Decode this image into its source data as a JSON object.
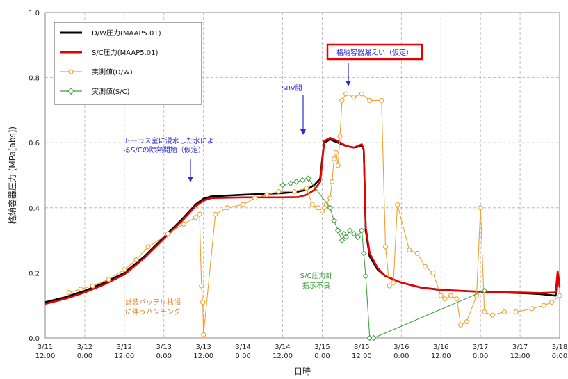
{
  "chart_data": {
    "type": "line",
    "xlabel": "日時",
    "ylabel": "格納容器圧力 (MPa[abs])",
    "ylim": [
      0,
      1.0
    ],
    "yticks": [
      "0.0",
      "0.2",
      "0.4",
      "0.6",
      "0.8",
      "1.0"
    ],
    "xlim": [
      0,
      13
    ],
    "xticks": [
      {
        "date": "3/11",
        "time": "12:00"
      },
      {
        "date": "3/12",
        "time": "0:00"
      },
      {
        "date": "3/12",
        "time": "12:00"
      },
      {
        "date": "3/13",
        "time": "0:00"
      },
      {
        "date": "3/13",
        "time": "12:00"
      },
      {
        "date": "3/14",
        "time": "0:00"
      },
      {
        "date": "3/14",
        "time": "12:00"
      },
      {
        "date": "3/15",
        "time": "0:00"
      },
      {
        "date": "3/15",
        "time": "12:00"
      },
      {
        "date": "3/16",
        "time": "0:00"
      },
      {
        "date": "3/16",
        "time": "12:00"
      },
      {
        "date": "3/17",
        "time": "0:00"
      },
      {
        "date": "3/17",
        "time": "12:00"
      },
      {
        "date": "3/18",
        "time": "0:00"
      }
    ],
    "grid": true,
    "legend_position": "top-left",
    "series": [
      {
        "name": "D/W圧力(MAAP5.01)",
        "color": "#000000",
        "marker": "none",
        "points": [
          [
            0,
            0.11
          ],
          [
            0.5,
            0.125
          ],
          [
            1,
            0.145
          ],
          [
            1.5,
            0.17
          ],
          [
            2,
            0.2
          ],
          [
            2.5,
            0.25
          ],
          [
            3,
            0.31
          ],
          [
            3.5,
            0.37
          ],
          [
            3.8,
            0.41
          ],
          [
            4,
            0.428
          ],
          [
            4.2,
            0.435
          ],
          [
            5,
            0.44
          ],
          [
            6,
            0.445
          ],
          [
            6.4,
            0.45
          ],
          [
            6.6,
            0.455
          ],
          [
            6.8,
            0.47
          ],
          [
            6.95,
            0.49
          ],
          [
            7.0,
            0.55
          ],
          [
            7.05,
            0.6
          ],
          [
            7.2,
            0.61
          ],
          [
            7.4,
            0.6
          ],
          [
            7.6,
            0.59
          ],
          [
            7.8,
            0.585
          ],
          [
            8.0,
            0.59
          ],
          [
            8.05,
            0.58
          ],
          [
            8.1,
            0.33
          ],
          [
            8.2,
            0.25
          ],
          [
            8.4,
            0.21
          ],
          [
            8.6,
            0.19
          ],
          [
            9,
            0.17
          ],
          [
            9.5,
            0.155
          ],
          [
            10,
            0.148
          ],
          [
            11,
            0.142
          ],
          [
            12,
            0.138
          ],
          [
            12.5,
            0.135
          ],
          [
            12.9,
            0.13
          ],
          [
            12.95,
            0.2
          ],
          [
            13,
            0.16
          ]
        ]
      },
      {
        "name": "S/C圧力(MAAP5.01)",
        "color": "#e60000",
        "marker": "none",
        "points": [
          [
            0,
            0.105
          ],
          [
            0.5,
            0.12
          ],
          [
            1,
            0.14
          ],
          [
            1.5,
            0.165
          ],
          [
            2,
            0.195
          ],
          [
            2.5,
            0.245
          ],
          [
            3,
            0.305
          ],
          [
            3.5,
            0.365
          ],
          [
            3.8,
            0.405
          ],
          [
            4,
            0.422
          ],
          [
            4.2,
            0.43
          ],
          [
            5,
            0.432
          ],
          [
            6,
            0.432
          ],
          [
            6.4,
            0.433
          ],
          [
            6.6,
            0.44
          ],
          [
            6.8,
            0.455
          ],
          [
            6.95,
            0.48
          ],
          [
            7.0,
            0.54
          ],
          [
            7.05,
            0.605
          ],
          [
            7.2,
            0.615
          ],
          [
            7.4,
            0.605
          ],
          [
            7.6,
            0.59
          ],
          [
            7.8,
            0.585
          ],
          [
            8.0,
            0.595
          ],
          [
            8.05,
            0.58
          ],
          [
            8.1,
            0.34
          ],
          [
            8.2,
            0.26
          ],
          [
            8.4,
            0.215
          ],
          [
            8.6,
            0.19
          ],
          [
            9,
            0.17
          ],
          [
            9.5,
            0.155
          ],
          [
            10,
            0.147
          ],
          [
            11,
            0.142
          ],
          [
            12,
            0.14
          ],
          [
            12.5,
            0.138
          ],
          [
            12.9,
            0.14
          ],
          [
            12.95,
            0.205
          ],
          [
            13,
            0.155
          ]
        ]
      },
      {
        "name": "実測値(D/W)",
        "color": "#f0a030",
        "marker": "circle",
        "points": [
          [
            0.6,
            0.14
          ],
          [
            0.9,
            0.15
          ],
          [
            1.2,
            0.16
          ],
          [
            1.6,
            0.18
          ],
          [
            2.0,
            0.21
          ],
          [
            2.3,
            0.24
          ],
          [
            2.6,
            0.28
          ],
          [
            3.1,
            0.32
          ],
          [
            3.5,
            0.35
          ],
          [
            3.8,
            0.37
          ],
          [
            3.9,
            0.38
          ],
          [
            3.95,
            0.16
          ],
          [
            3.98,
            0.11
          ],
          [
            4.0,
            0.01
          ],
          [
            4.3,
            0.38
          ],
          [
            4.6,
            0.4
          ],
          [
            5.0,
            0.41
          ],
          [
            5.3,
            0.43
          ],
          [
            5.6,
            0.44
          ],
          [
            5.9,
            0.45
          ],
          [
            6.3,
            0.45
          ],
          [
            6.6,
            0.46
          ],
          [
            6.75,
            0.41
          ],
          [
            6.9,
            0.4
          ],
          [
            7.0,
            0.39
          ],
          [
            7.05,
            0.4
          ],
          [
            7.1,
            0.41
          ],
          [
            7.2,
            0.43
          ],
          [
            7.25,
            0.48
          ],
          [
            7.3,
            0.55
          ],
          [
            7.35,
            0.57
          ],
          [
            7.4,
            0.53
          ],
          [
            7.45,
            0.62
          ],
          [
            7.5,
            0.73
          ],
          [
            7.6,
            0.75
          ],
          [
            7.8,
            0.74
          ],
          [
            8.0,
            0.75
          ],
          [
            8.2,
            0.73
          ],
          [
            8.5,
            0.73
          ],
          [
            8.6,
            0.28
          ],
          [
            8.7,
            0.16
          ],
          [
            8.8,
            0.17
          ],
          [
            8.9,
            0.41
          ],
          [
            9.2,
            0.27
          ],
          [
            9.4,
            0.26
          ],
          [
            9.6,
            0.22
          ],
          [
            9.8,
            0.2
          ],
          [
            10.0,
            0.13
          ],
          [
            10.1,
            0.12
          ],
          [
            10.25,
            0.13
          ],
          [
            10.4,
            0.12
          ],
          [
            10.5,
            0.04
          ],
          [
            10.65,
            0.05
          ],
          [
            10.9,
            0.13
          ],
          [
            11.0,
            0.4
          ],
          [
            11.1,
            0.08
          ],
          [
            11.3,
            0.07
          ],
          [
            11.6,
            0.08
          ],
          [
            11.9,
            0.08
          ],
          [
            12.3,
            0.09
          ],
          [
            12.6,
            0.1
          ],
          [
            12.8,
            0.11
          ],
          [
            13,
            0.13
          ]
        ]
      },
      {
        "name": "実測値(S/C)",
        "color": "#40a040",
        "marker": "diamond",
        "points": [
          [
            6.0,
            0.47
          ],
          [
            6.2,
            0.475
          ],
          [
            6.35,
            0.48
          ],
          [
            6.5,
            0.485
          ],
          [
            6.65,
            0.49
          ],
          [
            7.2,
            0.4
          ],
          [
            7.3,
            0.36
          ],
          [
            7.4,
            0.33
          ],
          [
            7.5,
            0.3
          ],
          [
            7.55,
            0.32
          ],
          [
            7.6,
            0.31
          ],
          [
            7.7,
            0.33
          ],
          [
            7.8,
            0.32
          ],
          [
            7.9,
            0.31
          ],
          [
            8.0,
            0.33
          ],
          [
            8.05,
            0.26
          ],
          [
            8.1,
            0.19
          ],
          [
            8.2,
            0.0
          ],
          [
            8.3,
            0.0
          ],
          [
            11.1,
            0.145
          ]
        ]
      }
    ],
    "annotations": [
      {
        "text": "トーラス室に浸水した水によ",
        "color": "#2a2ad0"
      },
      {
        "text": "るS/Cの除熱開始（仮定）",
        "color": "#2a2ad0"
      },
      {
        "text": "SRV開",
        "color": "#2a2ad0"
      },
      {
        "text": "格納容器漏えい（仮定）",
        "color": "#2a2ad0"
      },
      {
        "text": "計装バッテリ枯渇",
        "color": "#e08020"
      },
      {
        "text": "に伴うハンチング",
        "color": "#e08020"
      },
      {
        "text": "S/C圧力計",
        "color": "#30a030"
      },
      {
        "text": "指示不良",
        "color": "#30a030"
      }
    ]
  }
}
